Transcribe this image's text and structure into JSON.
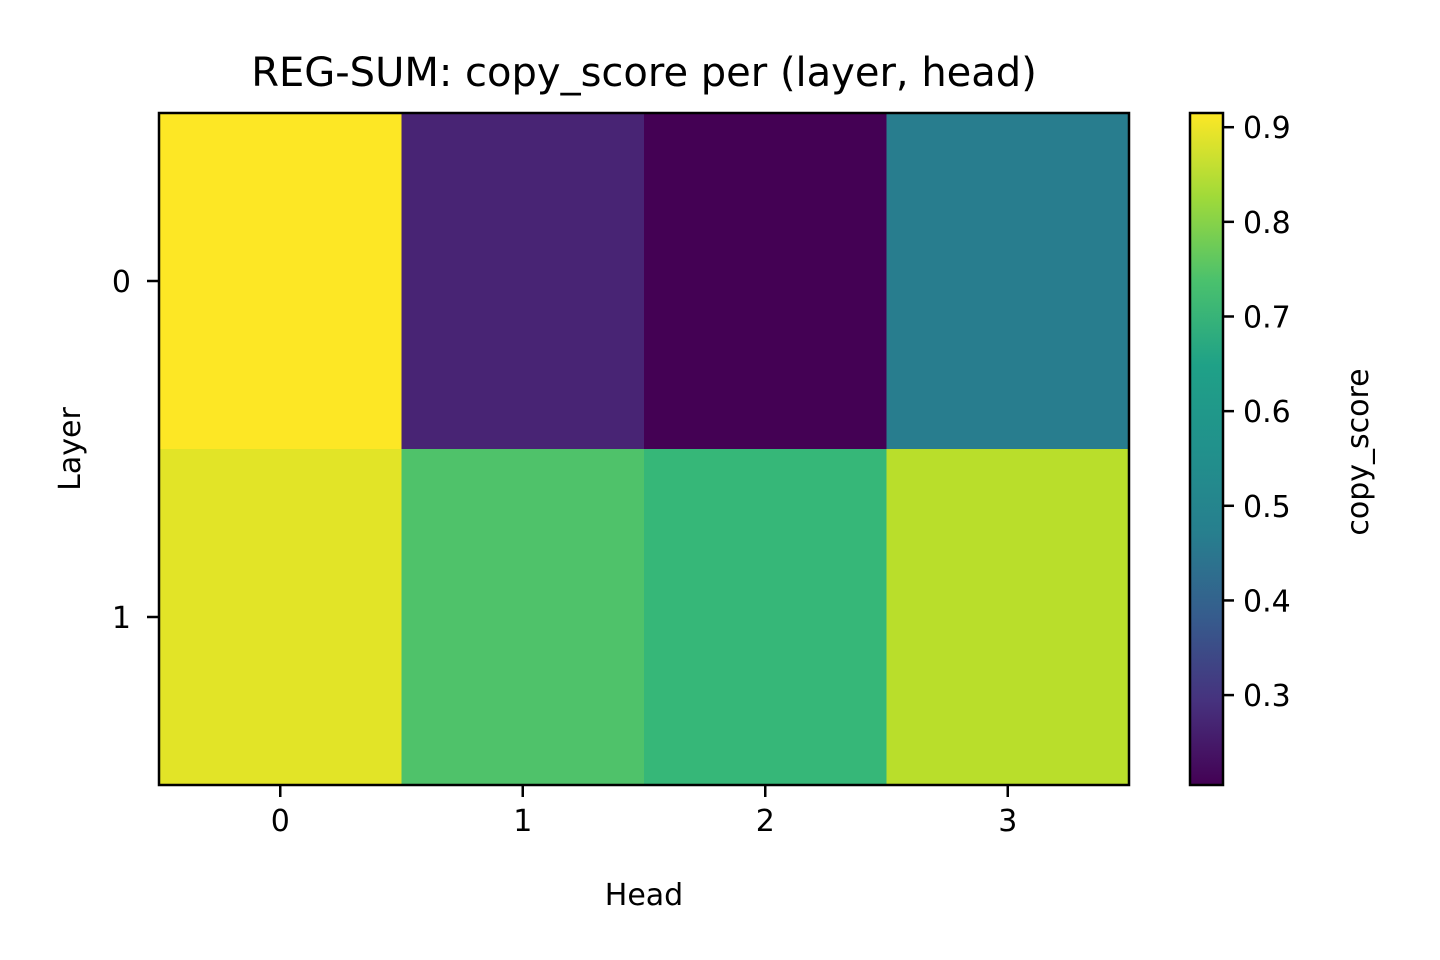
{
  "chart_data": {
    "type": "heatmap",
    "title": "REG-SUM: copy_score per (layer, head)",
    "xlabel": "Head",
    "ylabel": "Layer",
    "x_categories": [
      "0",
      "1",
      "2",
      "3"
    ],
    "y_categories": [
      "0",
      "1"
    ],
    "values": [
      [
        0.915,
        0.275,
        0.205,
        0.505
      ],
      [
        0.885,
        0.715,
        0.68,
        0.84
      ]
    ],
    "colormap": "viridis",
    "colorbar": {
      "label": "copy_score",
      "range": [
        0.205,
        0.915
      ],
      "ticks": [
        0.3,
        0.4,
        0.5,
        0.6,
        0.7,
        0.8,
        0.9
      ],
      "tick_labels": [
        "0.3",
        "0.4",
        "0.5",
        "0.6",
        "0.7",
        "0.8",
        "0.9"
      ]
    }
  }
}
